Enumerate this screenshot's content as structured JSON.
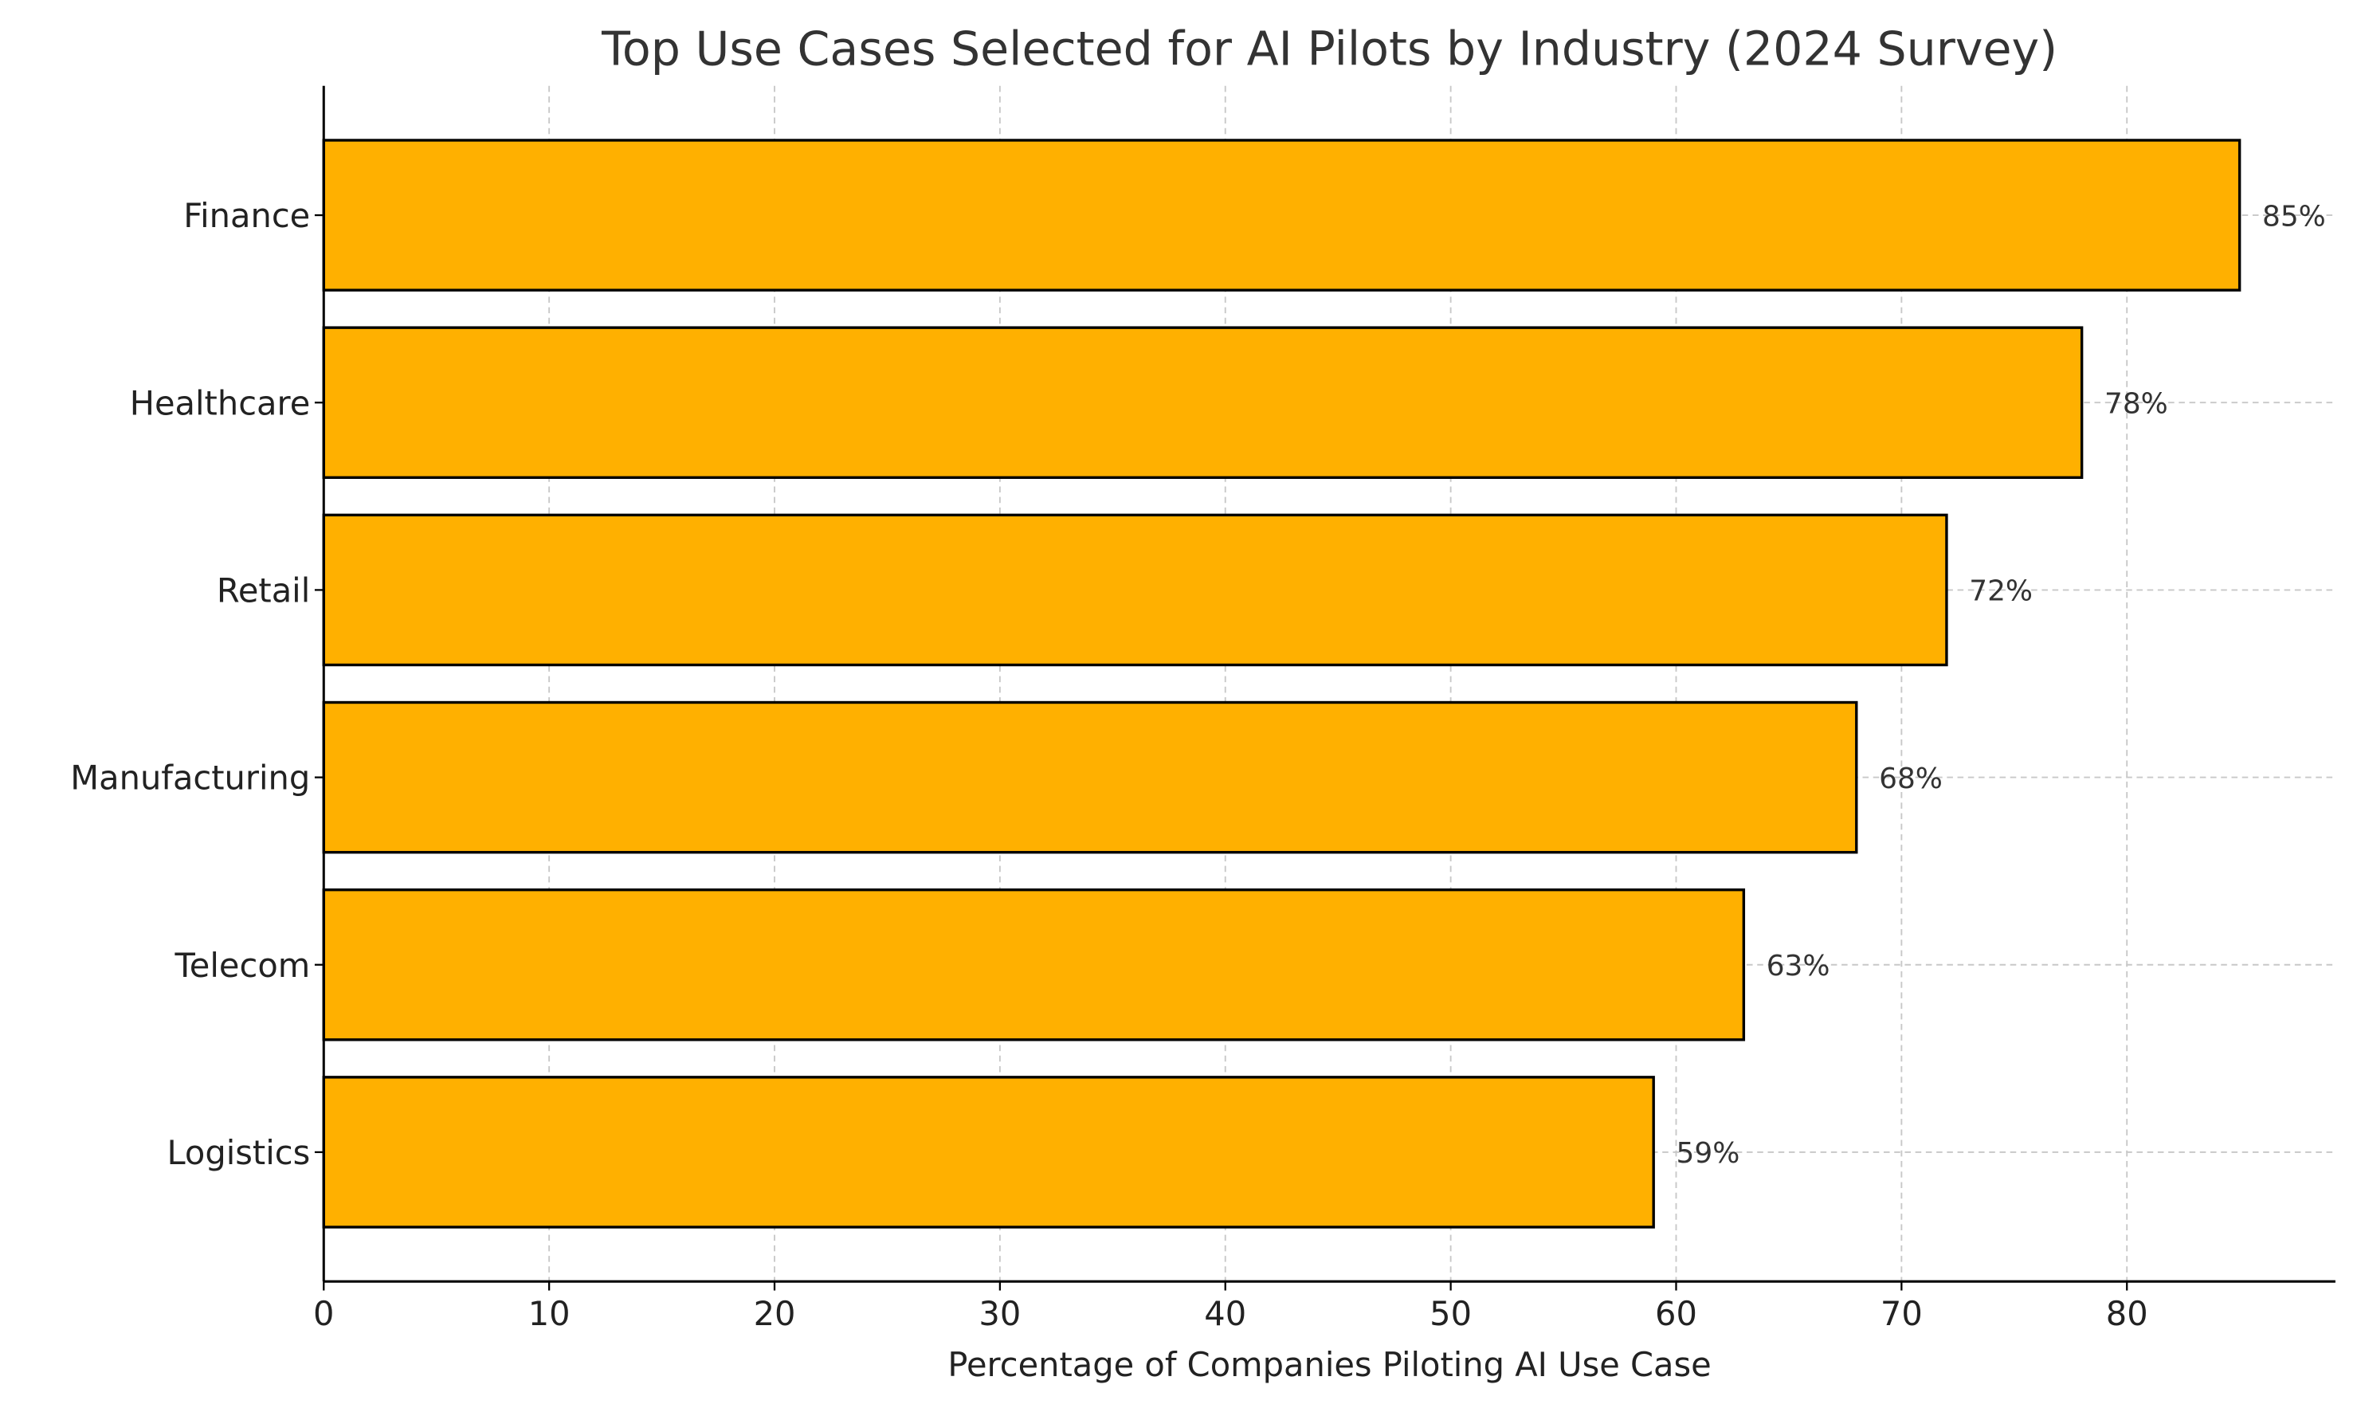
{
  "chart_data": {
    "type": "bar",
    "orientation": "horizontal",
    "title": "Top Use Cases Selected for AI Pilots by Industry (2024 Survey)",
    "xlabel": "Percentage of Companies Piloting AI Use Case",
    "ylabel": "",
    "categories": [
      "Finance",
      "Healthcare",
      "Retail",
      "Manufacturing",
      "Telecom",
      "Logistics"
    ],
    "values": [
      85,
      78,
      72,
      68,
      63,
      59
    ],
    "data_labels": [
      "85%",
      "78%",
      "72%",
      "68%",
      "63%",
      "59%"
    ],
    "xlim": [
      0,
      89.25
    ],
    "xticks": [
      0,
      10,
      20,
      30,
      40,
      50,
      60,
      70,
      80
    ],
    "xtick_labels": [
      "0",
      "10",
      "20",
      "30",
      "40",
      "50",
      "60",
      "70",
      "80"
    ],
    "grid": true,
    "bar_color": "#FFB000",
    "edge_color": "#000000",
    "legend": "none"
  }
}
